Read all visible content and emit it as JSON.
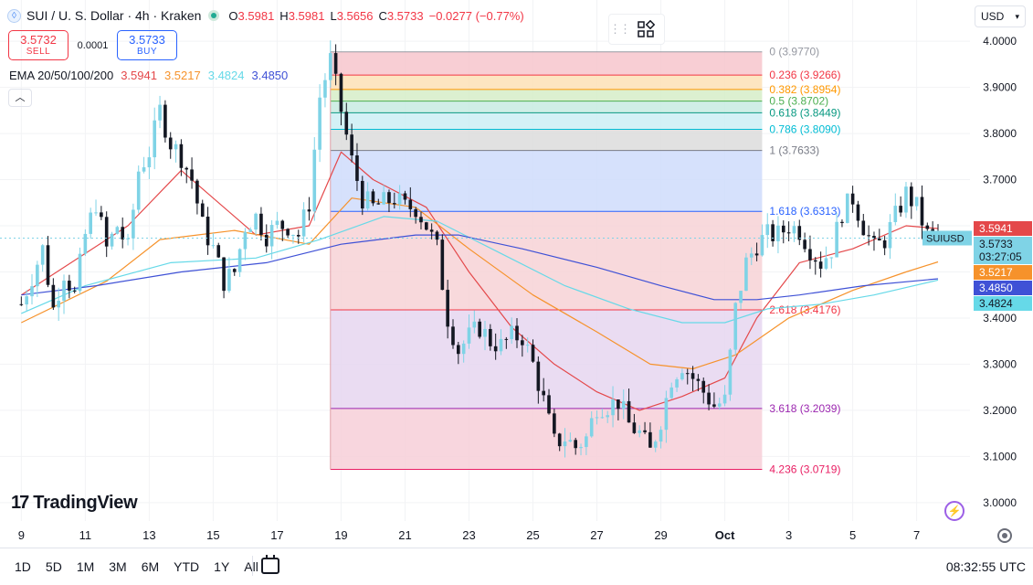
{
  "header": {
    "coin_icon": "sui-coin-icon",
    "title": "SUI / U. S. Dollar · 4h · Kraken",
    "ohlc": [
      {
        "k": "O",
        "v": "3.5981"
      },
      {
        "k": "H",
        "v": "3.5981"
      },
      {
        "k": "L",
        "v": "3.5656"
      },
      {
        "k": "C",
        "v": "3.5733"
      }
    ],
    "change": "−0.0277 (−0.77%)"
  },
  "trade": {
    "sell_price": "3.5732",
    "sell_label": "SELL",
    "spread": "0.0001",
    "buy_price": "3.5733",
    "buy_label": "BUY"
  },
  "ema": {
    "label": "EMA 20/50/100/200",
    "values": [
      "3.5941",
      "3.5217",
      "3.4824",
      "3.4850"
    ],
    "colors": [
      "#e4484a",
      "#f6922b",
      "#66d9e8",
      "#3f51d6"
    ]
  },
  "currency": "USD",
  "logo_text": "TradingView",
  "clock": "08:32:55 UTC",
  "ranges": [
    "1D",
    "5D",
    "1M",
    "3M",
    "6M",
    "YTD",
    "1Y",
    "All"
  ],
  "colors": {
    "up": "#089981",
    "down": "#f23645",
    "candle_up_fill": "#7fd3e6",
    "candle_down_fill": "#131722"
  },
  "chart_data": {
    "type": "candlestick",
    "symbol": "SUIUSD",
    "ylim": [
      2.96,
      4.03
    ],
    "y_ticks": [
      "3.0000",
      "3.1000",
      "3.2000",
      "3.3000",
      "3.4000",
      "3.5000",
      "3.6000",
      "3.7000",
      "3.8000",
      "3.9000",
      "4.0000"
    ],
    "x_ticks": [
      {
        "label": "9",
        "t": 0
      },
      {
        "label": "11",
        "t": 12
      },
      {
        "label": "13",
        "t": 24
      },
      {
        "label": "15",
        "t": 36
      },
      {
        "label": "17",
        "t": 48
      },
      {
        "label": "19",
        "t": 60
      },
      {
        "label": "21",
        "t": 72
      },
      {
        "label": "23",
        "t": 84
      },
      {
        "label": "25",
        "t": 96
      },
      {
        "label": "27",
        "t": 108
      },
      {
        "label": "29",
        "t": 120
      },
      {
        "label": "Oct",
        "t": 132
      },
      {
        "label": "3",
        "t": 144
      },
      {
        "label": "5",
        "t": 156
      },
      {
        "label": "7",
        "t": 168
      }
    ],
    "x_range": [
      -4,
      178
    ],
    "fibonacci": {
      "t_start": 58,
      "t_end": 139,
      "levels": [
        {
          "ratio": "0",
          "price": 3.977,
          "label": "0 (3.9770)",
          "color": "#9598a1"
        },
        {
          "ratio": "0.236",
          "price": 3.9266,
          "label": "0.236 (3.9266)",
          "color": "#f23645"
        },
        {
          "ratio": "0.382",
          "price": 3.8954,
          "label": "0.382 (3.8954)",
          "color": "#ff9800"
        },
        {
          "ratio": "0.5",
          "price": 3.8702,
          "label": "0.5 (3.8702)",
          "color": "#4caf50"
        },
        {
          "ratio": "0.618",
          "price": 3.8449,
          "label": "0.618 (3.8449)",
          "color": "#089981"
        },
        {
          "ratio": "0.786",
          "price": 3.809,
          "label": "0.786 (3.8090)",
          "color": "#00bcd4"
        },
        {
          "ratio": "1",
          "price": 3.7633,
          "label": "1 (3.7633)",
          "color": "#787b86"
        },
        {
          "ratio": "1.618",
          "price": 3.6313,
          "label": "1.618 (3.6313)",
          "color": "#2962ff"
        },
        {
          "ratio": "2.618",
          "price": 3.4176,
          "label": "2.618 (3.4176)",
          "color": "#f23645"
        },
        {
          "ratio": "3.618",
          "price": 3.2039,
          "label": "3.618 (3.2039)",
          "color": "#9c27b0"
        },
        {
          "ratio": "4.236",
          "price": 3.0719,
          "label": "4.236 (3.0719)",
          "color": "#e91e63"
        }
      ]
    },
    "price_labels": [
      {
        "text": "3.5941",
        "value": 3.5941,
        "bg": "#e4484a",
        "fg": "#ffffff"
      },
      {
        "text": "3.5733",
        "sub": "03:27:05",
        "value": 3.5733,
        "bg": "#7fd3e6",
        "fg": "#131722"
      },
      {
        "text": "3.5217",
        "value": 3.5217,
        "bg": "#f6922b",
        "fg": "#ffffff"
      },
      {
        "text": "3.4850",
        "value": 3.485,
        "bg": "#3f51d6",
        "fg": "#ffffff"
      },
      {
        "text": "3.4824",
        "value": 3.4824,
        "bg": "#66d9e8",
        "fg": "#131722"
      }
    ],
    "last_price": 3.5733,
    "anchors": [
      [
        0,
        3.43
      ],
      [
        4,
        3.55
      ],
      [
        6,
        3.42
      ],
      [
        8,
        3.5
      ],
      [
        10,
        3.45
      ],
      [
        12,
        3.58
      ],
      [
        14,
        3.65
      ],
      [
        16,
        3.55
      ],
      [
        18,
        3.6
      ],
      [
        20,
        3.55
      ],
      [
        22,
        3.72
      ],
      [
        24,
        3.76
      ],
      [
        26,
        3.85
      ],
      [
        28,
        3.78
      ],
      [
        30,
        3.75
      ],
      [
        32,
        3.7
      ],
      [
        34,
        3.6
      ],
      [
        36,
        3.55
      ],
      [
        38,
        3.48
      ],
      [
        40,
        3.5
      ],
      [
        42,
        3.6
      ],
      [
        44,
        3.62
      ],
      [
        46,
        3.58
      ],
      [
        48,
        3.6
      ],
      [
        50,
        3.6
      ],
      [
        52,
        3.58
      ],
      [
        54,
        3.65
      ],
      [
        56,
        3.88
      ],
      [
        58,
        3.96
      ],
      [
        60,
        3.85
      ],
      [
        62,
        3.74
      ],
      [
        64,
        3.66
      ],
      [
        66,
        3.64
      ],
      [
        68,
        3.65
      ],
      [
        70,
        3.66
      ],
      [
        72,
        3.64
      ],
      [
        74,
        3.64
      ],
      [
        76,
        3.6
      ],
      [
        78,
        3.55
      ],
      [
        80,
        3.4
      ],
      [
        82,
        3.33
      ],
      [
        84,
        3.36
      ],
      [
        86,
        3.38
      ],
      [
        88,
        3.35
      ],
      [
        90,
        3.34
      ],
      [
        92,
        3.36
      ],
      [
        94,
        3.36
      ],
      [
        96,
        3.3
      ],
      [
        98,
        3.22
      ],
      [
        100,
        3.13
      ],
      [
        102,
        3.14
      ],
      [
        104,
        3.12
      ],
      [
        106,
        3.14
      ],
      [
        108,
        3.21
      ],
      [
        110,
        3.21
      ],
      [
        112,
        3.22
      ],
      [
        114,
        3.17
      ],
      [
        116,
        3.15
      ],
      [
        118,
        3.11
      ],
      [
        120,
        3.18
      ],
      [
        122,
        3.27
      ],
      [
        124,
        3.3
      ],
      [
        126,
        3.27
      ],
      [
        128,
        3.24
      ],
      [
        130,
        3.21
      ],
      [
        132,
        3.22
      ],
      [
        134,
        3.42
      ],
      [
        136,
        3.52
      ],
      [
        138,
        3.56
      ],
      [
        140,
        3.58
      ],
      [
        142,
        3.58
      ],
      [
        144,
        3.6
      ],
      [
        146,
        3.59
      ],
      [
        148,
        3.55
      ],
      [
        150,
        3.52
      ],
      [
        152,
        3.55
      ],
      [
        154,
        3.63
      ],
      [
        156,
        3.66
      ],
      [
        158,
        3.6
      ],
      [
        160,
        3.55
      ],
      [
        162,
        3.57
      ],
      [
        164,
        3.62
      ],
      [
        166,
        3.67
      ],
      [
        168,
        3.64
      ],
      [
        170,
        3.58
      ],
      [
        172,
        3.5733
      ]
    ],
    "ema_series": [
      {
        "name": "EMA 20",
        "color": "#e4484a",
        "points": [
          [
            0,
            3.45
          ],
          [
            20,
            3.6
          ],
          [
            30,
            3.72
          ],
          [
            44,
            3.58
          ],
          [
            54,
            3.6
          ],
          [
            60,
            3.76
          ],
          [
            66,
            3.7
          ],
          [
            76,
            3.64
          ],
          [
            84,
            3.5
          ],
          [
            92,
            3.38
          ],
          [
            100,
            3.3
          ],
          [
            108,
            3.24
          ],
          [
            116,
            3.2
          ],
          [
            124,
            3.23
          ],
          [
            132,
            3.27
          ],
          [
            138,
            3.4
          ],
          [
            146,
            3.52
          ],
          [
            156,
            3.55
          ],
          [
            166,
            3.6
          ],
          [
            172,
            3.5941
          ]
        ]
      },
      {
        "name": "EMA 50",
        "color": "#f6922b",
        "points": [
          [
            0,
            3.39
          ],
          [
            16,
            3.48
          ],
          [
            26,
            3.57
          ],
          [
            40,
            3.59
          ],
          [
            54,
            3.56
          ],
          [
            62,
            3.66
          ],
          [
            74,
            3.64
          ],
          [
            84,
            3.55
          ],
          [
            96,
            3.45
          ],
          [
            108,
            3.37
          ],
          [
            118,
            3.3
          ],
          [
            126,
            3.29
          ],
          [
            134,
            3.32
          ],
          [
            144,
            3.4
          ],
          [
            156,
            3.46
          ],
          [
            166,
            3.5
          ],
          [
            172,
            3.5217
          ]
        ]
      },
      {
        "name": "EMA 100",
        "color": "#66d9e8",
        "points": [
          [
            0,
            3.41
          ],
          [
            12,
            3.47
          ],
          [
            28,
            3.52
          ],
          [
            44,
            3.53
          ],
          [
            56,
            3.57
          ],
          [
            68,
            3.62
          ],
          [
            78,
            3.61
          ],
          [
            90,
            3.54
          ],
          [
            102,
            3.47
          ],
          [
            114,
            3.42
          ],
          [
            124,
            3.39
          ],
          [
            132,
            3.39
          ],
          [
            140,
            3.42
          ],
          [
            150,
            3.43
          ],
          [
            160,
            3.45
          ],
          [
            172,
            3.4824
          ]
        ]
      },
      {
        "name": "EMA 200",
        "color": "#3f51d6",
        "points": [
          [
            0,
            3.45
          ],
          [
            14,
            3.47
          ],
          [
            30,
            3.5
          ],
          [
            46,
            3.52
          ],
          [
            60,
            3.56
          ],
          [
            74,
            3.58
          ],
          [
            82,
            3.58
          ],
          [
            94,
            3.55
          ],
          [
            108,
            3.51
          ],
          [
            120,
            3.47
          ],
          [
            130,
            3.44
          ],
          [
            138,
            3.44
          ],
          [
            146,
            3.45
          ],
          [
            158,
            3.47
          ],
          [
            172,
            3.485
          ]
        ]
      }
    ]
  }
}
